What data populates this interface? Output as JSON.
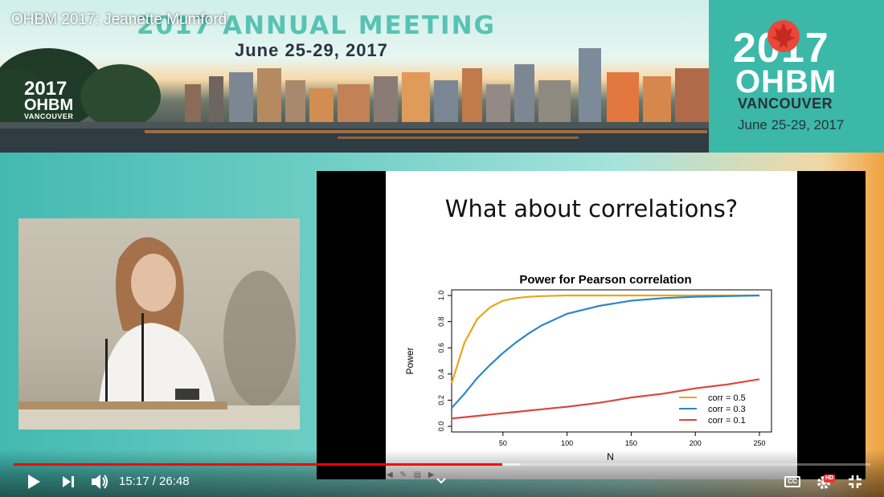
{
  "video": {
    "title": "OHBM 2017: Jeanette Mumford",
    "current_time": "15:17",
    "duration": "26:48",
    "time_display": "15:17 / 26:48",
    "progress_fraction": 0.57,
    "buffered_fraction": 0.592,
    "hd_label": "HD",
    "cc_label": "CC"
  },
  "banner": {
    "title": "2017 ANNUAL MEETING",
    "dates": "June 25-29, 2017",
    "small_logo": {
      "year": "2017",
      "org": "OHBM",
      "city": "VANCOUVER"
    },
    "brand": {
      "year": "2017",
      "org": "OHBM",
      "city": "VANCOUVER",
      "dates": "June 25-29, 2017"
    }
  },
  "slide": {
    "heading": "What about correlations?",
    "chart_data": {
      "type": "line",
      "title": "Power for Pearson correlation",
      "xlabel": "N",
      "ylabel": "Power",
      "xlim": [
        10,
        250
      ],
      "ylim": [
        0,
        1
      ],
      "xticks": [
        50,
        100,
        150,
        200,
        250
      ],
      "yticks": [
        0.0,
        0.2,
        0.4,
        0.6,
        0.8,
        1.0
      ],
      "grid": false,
      "legend_position": "bottom-right",
      "x": [
        10,
        20,
        30,
        40,
        50,
        60,
        70,
        80,
        100,
        125,
        150,
        175,
        200,
        225,
        250
      ],
      "series": [
        {
          "name": "corr = 0.5",
          "color": "#e6a817",
          "values": [
            0.33,
            0.64,
            0.82,
            0.91,
            0.96,
            0.98,
            0.99,
            0.995,
            1.0,
            1.0,
            1.0,
            1.0,
            1.0,
            1.0,
            1.0
          ]
        },
        {
          "name": "corr = 0.3",
          "color": "#2e86c8",
          "values": [
            0.14,
            0.25,
            0.37,
            0.47,
            0.56,
            0.64,
            0.71,
            0.77,
            0.86,
            0.92,
            0.96,
            0.98,
            0.99,
            0.995,
            1.0
          ]
        },
        {
          "name": "corr = 0.1",
          "color": "#d9473f",
          "values": [
            0.06,
            0.07,
            0.08,
            0.09,
            0.1,
            0.11,
            0.12,
            0.13,
            0.15,
            0.18,
            0.22,
            0.25,
            0.29,
            0.32,
            0.36
          ]
        }
      ]
    }
  },
  "controls": {
    "play": "play-icon",
    "next": "next-icon",
    "volume": "volume-icon",
    "chapter": "chevron-down-icon",
    "subtitles": "cc-icon",
    "settings": "gear-icon",
    "fullscreen": "exit-fullscreen-icon"
  },
  "colors": {
    "progress": "#ff0000",
    "teal": "#3bb8a8"
  }
}
